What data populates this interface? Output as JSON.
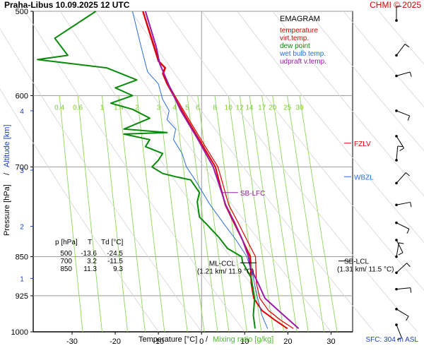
{
  "header": {
    "title": "Praha-Libus    10.09.2025 12 UTC",
    "copyright": "CHMI © 2025"
  },
  "chart_data": {
    "type": "line",
    "kind": "emagram",
    "xlim": [
      -39,
      35
    ],
    "ylim_pressure_hpa": [
      1000,
      500
    ],
    "log_pressure_axis": true,
    "grid": true,
    "pressure_ticks": [
      500,
      600,
      700,
      850,
      925,
      1000
    ],
    "temperature_ticks": [
      -30,
      -20,
      -10,
      0,
      10,
      20,
      30
    ],
    "altitude_ticks": [
      {
        "label": "1",
        "p": 891
      },
      {
        "label": "2",
        "p": 796
      },
      {
        "label": "3",
        "p": 705
      },
      {
        "label": "4",
        "p": 620
      }
    ],
    "xlabel_temperature": "Temperature [°C]",
    "xlabel_separator": "/",
    "xlabel_mixing": "Mixing ratio [g/kg]",
    "ylabel_pressure": "Pressure [hPa]",
    "ylabel_separator": "/",
    "ylabel_altitude": "Altitude [km]",
    "mixing_ratio_labels": [
      "0.4",
      "0.6",
      "1",
      "1.4",
      "2",
      "3",
      "4",
      "5",
      "6",
      "8",
      "10",
      "12",
      "14",
      "17",
      "20",
      "25",
      "30"
    ],
    "legend_title": "EMAGRAM",
    "legend": [
      {
        "label": "temperature",
        "color": "#e00000"
      },
      {
        "label": "virt.temp.",
        "color": "#e00000"
      },
      {
        "label": "dew point",
        "color": "#0a8a0a"
      },
      {
        "label": "wet bulb temp.",
        "color": "#2a6fd6"
      },
      {
        "label": "udpraft v.temp.",
        "color": "#9a1aa8"
      }
    ],
    "series": [
      {
        "name": "temperature",
        "color": "#e00000",
        "points": [
          [
            19.9,
            993
          ],
          [
            17,
            975
          ],
          [
            14,
            955
          ],
          [
            12.1,
            930
          ],
          [
            11.5,
            900
          ],
          [
            11.3,
            850
          ],
          [
            9.5,
            820
          ],
          [
            7.5,
            790
          ],
          [
            5.5,
            760
          ],
          [
            3.2,
            700
          ],
          [
            -1,
            655
          ],
          [
            -3.5,
            630
          ],
          [
            -6.5,
            600
          ],
          [
            -8,
            585
          ],
          [
            -9,
            572
          ],
          [
            -8.5,
            565
          ],
          [
            -10,
            557
          ],
          [
            -13.6,
            500
          ]
        ]
      },
      {
        "name": "virt.temp.",
        "color": "#e00000",
        "points": [
          [
            21.3,
            993
          ],
          [
            18.3,
            975
          ],
          [
            15.5,
            955
          ],
          [
            13.5,
            930
          ],
          [
            12.7,
            900
          ],
          [
            12.5,
            850
          ],
          [
            10.5,
            820
          ],
          [
            8.5,
            790
          ],
          [
            6.3,
            760
          ],
          [
            3.8,
            700
          ],
          [
            -0.6,
            655
          ],
          [
            -3.1,
            630
          ],
          [
            -6.2,
            600
          ],
          [
            -7.7,
            585
          ],
          [
            -8.8,
            572
          ],
          [
            -8.3,
            565
          ],
          [
            -9.8,
            557
          ],
          [
            -13.5,
            500
          ]
        ]
      },
      {
        "name": "dew point",
        "color": "#0a8a0a",
        "points": [
          [
            12.4,
            993
          ],
          [
            12,
            965
          ],
          [
            12.3,
            930
          ],
          [
            11.5,
            890
          ],
          [
            9.5,
            860
          ],
          [
            9.3,
            850
          ],
          [
            6,
            835
          ],
          [
            4,
            815
          ],
          [
            1.5,
            795
          ],
          [
            -0.5,
            780
          ],
          [
            -1,
            755
          ],
          [
            -0.5,
            740
          ],
          [
            -2.5,
            720
          ],
          [
            -6,
            715
          ],
          [
            -9,
            710
          ],
          [
            -11.5,
            700
          ],
          [
            -10,
            690
          ],
          [
            -9,
            680
          ],
          [
            -13,
            670
          ],
          [
            -12,
            660
          ],
          [
            -18,
            652
          ],
          [
            -8,
            650
          ],
          [
            -18,
            645
          ],
          [
            -12,
            630
          ],
          [
            -16,
            618
          ],
          [
            -21,
            610
          ],
          [
            -16,
            600
          ],
          [
            -20,
            590
          ],
          [
            -15,
            580
          ],
          [
            -22,
            565
          ],
          [
            -30,
            560
          ],
          [
            -38,
            555
          ],
          [
            -31,
            550
          ],
          [
            -34,
            530
          ],
          [
            -24.5,
            500
          ]
        ]
      },
      {
        "name": "wet bulb temp.",
        "color": "#2a6fd6",
        "points": [
          [
            15.3,
            993
          ],
          [
            14,
            965
          ],
          [
            13,
            930
          ],
          [
            12,
            890
          ],
          [
            10.5,
            850
          ],
          [
            8,
            820
          ],
          [
            5,
            790
          ],
          [
            2,
            760
          ],
          [
            -1.5,
            720
          ],
          [
            -3.5,
            700
          ],
          [
            -4.5,
            680
          ],
          [
            -6.5,
            660
          ],
          [
            -6,
            645
          ],
          [
            -8,
            632
          ],
          [
            -7.5,
            620
          ],
          [
            -9,
            605
          ],
          [
            -9.5,
            595
          ],
          [
            -10,
            585
          ],
          [
            -12.5,
            570
          ],
          [
            -13,
            560
          ],
          [
            -14,
            540
          ],
          [
            -16,
            500
          ]
        ]
      },
      {
        "name": "udpraft v.temp.",
        "color": "#9a1aa8",
        "points": [
          [
            22.5,
            993
          ],
          [
            20.3,
            975
          ],
          [
            17.8,
            955
          ],
          [
            14.7,
            930
          ],
          [
            13.1,
            900
          ],
          [
            11.3,
            870
          ],
          [
            10.9,
            850
          ],
          [
            9.5,
            820
          ],
          [
            7.7,
            790
          ],
          [
            5.6,
            760
          ],
          [
            4.2,
            730
          ],
          [
            2.7,
            700
          ],
          [
            -0.8,
            660
          ],
          [
            -4.8,
            620
          ],
          [
            -7.3,
            590
          ],
          [
            -9.7,
            560
          ],
          [
            -10.5,
            540
          ],
          [
            -13,
            500
          ]
        ]
      }
    ],
    "annotations": [
      {
        "label": "FZLV",
        "p": 665,
        "color": "#e00000"
      },
      {
        "label": "WBZL",
        "p": 715,
        "color": "#2a6fd6"
      },
      {
        "label": "SB-LFC",
        "p": 740,
        "t": 5.5,
        "color": "#9a1aa8"
      },
      {
        "label": "ML-CCL",
        "p": 864,
        "t": 11.9,
        "color": "#000000"
      },
      {
        "label": "(1.21 km/ 11.9 °C)",
        "color": "#000000"
      },
      {
        "label": "SB-LCL",
        "p": 858,
        "color": "#000000"
      },
      {
        "label": "(1.31 km/ 11.5 °C)",
        "color": "#000000"
      }
    ],
    "table": {
      "headers": [
        "p [hPa]",
        "T",
        "Td [°C]"
      ],
      "rows": [
        [
          "500",
          "-13.6",
          "-24.5"
        ],
        [
          "700",
          "3.2",
          "-11.5"
        ],
        [
          "850",
          "11.3",
          "9.3"
        ]
      ]
    },
    "wind_profile_pressures": [
      510,
      550,
      575,
      620,
      655,
      690,
      725,
      760,
      790,
      820,
      850,
      880,
      912,
      952,
      985
    ],
    "footer": "SFC: 304 m ASL"
  }
}
